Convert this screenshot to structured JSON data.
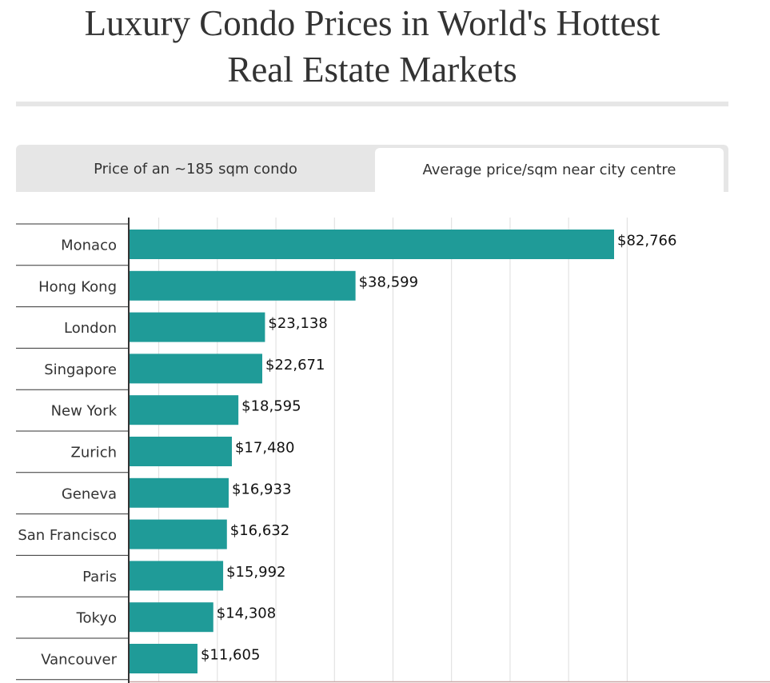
{
  "title": {
    "line1": "Luxury Condo Prices in World's Hottest",
    "line2": "Real Estate Markets"
  },
  "tabs": [
    {
      "label": "Price of an ~185 sqm condo",
      "active": false
    },
    {
      "label": "Average price/sqm near city centre",
      "active": true
    }
  ],
  "colors": {
    "bar": "#1f9b98",
    "grid": "#dddddd",
    "axis": "#333333",
    "rule": "#e6e6e6",
    "bottom_line": "#c9a6a6"
  },
  "chart_data": {
    "type": "bar",
    "orientation": "horizontal",
    "title": "Luxury Condo Prices in World's Hottest Real Estate Markets",
    "xlabel": "",
    "ylabel": "",
    "xlim": [
      0,
      90000
    ],
    "grid": true,
    "categories": [
      "Monaco",
      "Hong Kong",
      "London",
      "Singapore",
      "New York",
      "Zurich",
      "Geneva",
      "San Francisco",
      "Paris",
      "Tokyo",
      "Vancouver"
    ],
    "values": [
      82766,
      38599,
      23138,
      22671,
      18595,
      17480,
      16933,
      16632,
      15992,
      14308,
      11605
    ],
    "value_labels": [
      "$82,766",
      "$38,599",
      "$23,138",
      "$22,671",
      "$18,595",
      "$17,480",
      "$16,933",
      "$16,632",
      "$15,992",
      "$14,308",
      "$11,605"
    ]
  }
}
